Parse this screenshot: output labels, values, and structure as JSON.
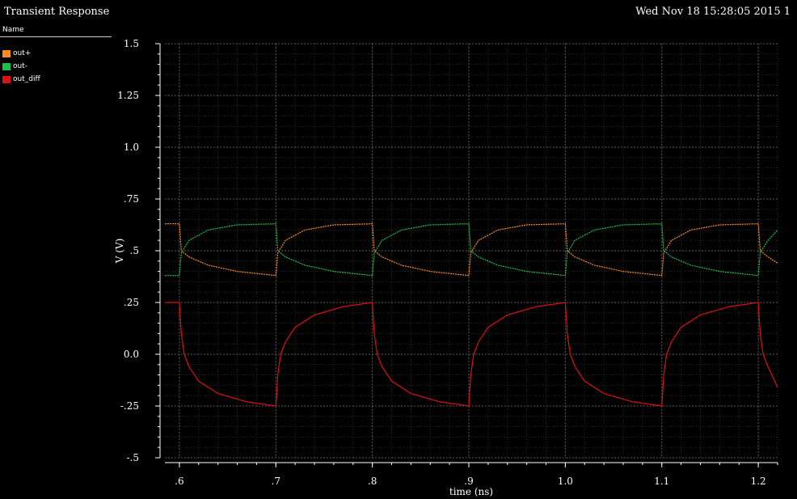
{
  "header": {
    "title": "Transient Response",
    "datestamp": "Wed Nov 18 15:28:05 2015  1"
  },
  "legend": {
    "header": "Name",
    "items": [
      {
        "label": "out+",
        "color": "#ff8c1a"
      },
      {
        "label": "out-",
        "color": "#19c24a"
      },
      {
        "label": "out_diff",
        "color": "#e01010"
      }
    ]
  },
  "chart_data": {
    "type": "line",
    "xlabel": "time (ns)",
    "ylabel": "V (V)",
    "xlim": [
      0.585,
      1.22
    ],
    "ylim": [
      -0.5,
      1.5
    ],
    "x_ticks": [
      0.6,
      0.7,
      0.8,
      0.9,
      1.0,
      1.1,
      1.2
    ],
    "x_tick_labels": [
      ".6",
      ".7",
      ".8",
      ".9",
      "1.0",
      "1.1",
      "1.2"
    ],
    "y_ticks": [
      1.5,
      1.25,
      1.0,
      0.75,
      0.5,
      0.25,
      0.0,
      -0.25,
      -0.5
    ],
    "y_tick_labels": [
      "1.5",
      "1.25",
      "1.0",
      ".75",
      ".5",
      ".25",
      "0.0",
      "-.25",
      "-.5"
    ],
    "grid": true,
    "series": [
      {
        "name": "out+",
        "color": "#ff8c1a",
        "x": [
          0.585,
          0.6,
          0.602,
          0.61,
          0.63,
          0.66,
          0.7,
          0.702,
          0.71,
          0.73,
          0.76,
          0.8,
          0.802,
          0.81,
          0.83,
          0.86,
          0.9,
          0.902,
          0.91,
          0.93,
          0.96,
          1.0,
          1.002,
          1.01,
          1.03,
          1.06,
          1.1,
          1.102,
          1.11,
          1.13,
          1.16,
          1.2,
          1.202,
          1.21,
          1.22
        ],
        "y": [
          0.63,
          0.63,
          0.5,
          0.47,
          0.43,
          0.4,
          0.38,
          0.49,
          0.55,
          0.6,
          0.625,
          0.63,
          0.5,
          0.47,
          0.43,
          0.4,
          0.38,
          0.49,
          0.55,
          0.6,
          0.625,
          0.63,
          0.5,
          0.47,
          0.43,
          0.4,
          0.38,
          0.49,
          0.55,
          0.6,
          0.625,
          0.63,
          0.5,
          0.47,
          0.44
        ]
      },
      {
        "name": "out-",
        "color": "#19c24a",
        "x": [
          0.585,
          0.6,
          0.602,
          0.61,
          0.63,
          0.66,
          0.7,
          0.702,
          0.71,
          0.73,
          0.76,
          0.8,
          0.802,
          0.81,
          0.83,
          0.86,
          0.9,
          0.902,
          0.91,
          0.93,
          0.96,
          1.0,
          1.002,
          1.01,
          1.03,
          1.06,
          1.1,
          1.102,
          1.11,
          1.13,
          1.16,
          1.2,
          1.202,
          1.21,
          1.22
        ],
        "y": [
          0.38,
          0.38,
          0.49,
          0.55,
          0.6,
          0.625,
          0.63,
          0.5,
          0.47,
          0.43,
          0.4,
          0.38,
          0.49,
          0.55,
          0.6,
          0.625,
          0.63,
          0.5,
          0.47,
          0.43,
          0.4,
          0.38,
          0.49,
          0.55,
          0.6,
          0.625,
          0.63,
          0.5,
          0.47,
          0.43,
          0.4,
          0.38,
          0.49,
          0.55,
          0.6
        ]
      },
      {
        "name": "out_diff",
        "color": "#e01010",
        "x": [
          0.585,
          0.6,
          0.602,
          0.605,
          0.61,
          0.62,
          0.64,
          0.67,
          0.7,
          0.702,
          0.705,
          0.71,
          0.72,
          0.74,
          0.77,
          0.8,
          0.802,
          0.805,
          0.81,
          0.82,
          0.84,
          0.87,
          0.9,
          0.902,
          0.905,
          0.91,
          0.92,
          0.94,
          0.97,
          1.0,
          1.002,
          1.005,
          1.01,
          1.02,
          1.04,
          1.07,
          1.1,
          1.102,
          1.105,
          1.11,
          1.12,
          1.14,
          1.17,
          1.2,
          1.202,
          1.205,
          1.21,
          1.22
        ],
        "y": [
          0.25,
          0.25,
          0.1,
          0.0,
          -0.06,
          -0.13,
          -0.19,
          -0.23,
          -0.25,
          -0.1,
          0.0,
          0.06,
          0.13,
          0.19,
          0.23,
          0.25,
          0.1,
          0.0,
          -0.06,
          -0.13,
          -0.19,
          -0.23,
          -0.25,
          -0.1,
          0.0,
          0.06,
          0.13,
          0.19,
          0.23,
          0.25,
          0.1,
          0.0,
          -0.06,
          -0.13,
          -0.19,
          -0.23,
          -0.25,
          -0.1,
          0.0,
          0.06,
          0.13,
          0.19,
          0.23,
          0.25,
          0.1,
          0.0,
          -0.06,
          -0.16
        ]
      }
    ]
  }
}
